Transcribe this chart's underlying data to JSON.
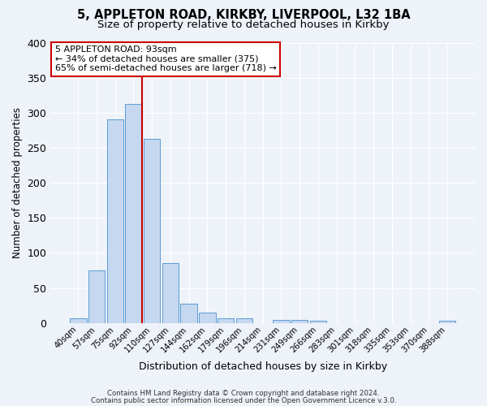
{
  "title1": "5, APPLETON ROAD, KIRKBY, LIVERPOOL, L32 1BA",
  "title2": "Size of property relative to detached houses in Kirkby",
  "xlabel": "Distribution of detached houses by size in Kirkby",
  "ylabel": "Number of detached properties",
  "bin_labels": [
    "40sqm",
    "57sqm",
    "75sqm",
    "92sqm",
    "110sqm",
    "127sqm",
    "144sqm",
    "162sqm",
    "179sqm",
    "196sqm",
    "214sqm",
    "231sqm",
    "249sqm",
    "266sqm",
    "283sqm",
    "301sqm",
    "318sqm",
    "335sqm",
    "353sqm",
    "370sqm",
    "388sqm"
  ],
  "bar_heights": [
    7,
    75,
    291,
    312,
    263,
    85,
    27,
    15,
    7,
    7,
    0,
    4,
    4,
    3,
    0,
    0,
    0,
    0,
    0,
    0,
    3
  ],
  "bar_color": "#c5d8f0",
  "bar_edge_color": "#5b9bd5",
  "vline_color": "#cc0000",
  "annotation_title": "5 APPLETON ROAD: 93sqm",
  "annotation_line1": "← 34% of detached houses are smaller (375)",
  "annotation_line2": "65% of semi-detached houses are larger (718) →",
  "annotation_box_color": "#ffffff",
  "annotation_box_edge": "#cc0000",
  "footer1": "Contains HM Land Registry data © Crown copyright and database right 2024.",
  "footer2": "Contains public sector information licensed under the Open Government Licence v.3.0.",
  "ylim": [
    0,
    400
  ],
  "bg_color": "#eef2f9",
  "title1_fontsize": 10.5,
  "title2_fontsize": 9.5
}
